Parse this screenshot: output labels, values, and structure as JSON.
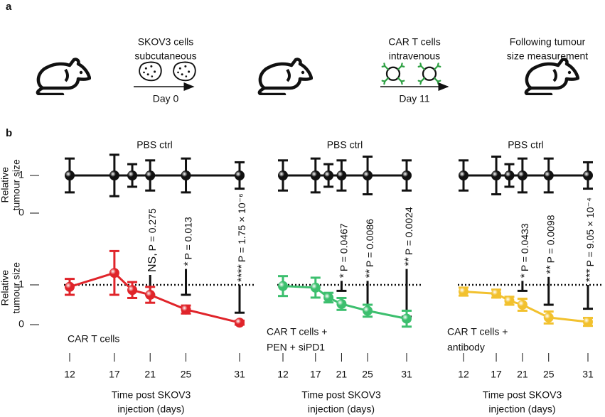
{
  "schematic": {
    "panel_label": "a",
    "steps": [
      {
        "lines": [
          "SKOV3 cells",
          "subcutaneous"
        ],
        "day": "Day 0"
      },
      {
        "lines": [
          "CAR T cells",
          "intravenous"
        ],
        "day": "Day 11"
      },
      {
        "lines": [
          "Following tumour",
          "size measurement"
        ]
      }
    ]
  },
  "panel_b_label": "b",
  "chart_data": [
    {
      "type": "line",
      "title": "PBS ctrl",
      "ylabel": [
        "Relative",
        "tumour size"
      ],
      "xlim": [
        12,
        31
      ],
      "ylim": [
        -0.1,
        1.6
      ],
      "yticks": [
        0,
        1
      ],
      "series": [
        {
          "color": "#111111",
          "x": [
            12,
            17,
            19,
            21,
            25,
            31
          ],
          "values": [
            1,
            1,
            1,
            1,
            1,
            1
          ],
          "errors": [
            0.45,
            0.55,
            0.3,
            0.4,
            0.45,
            0.35
          ]
        }
      ]
    },
    {
      "type": "line",
      "ylabel": [
        "Relative",
        "tumour size"
      ],
      "xlabel": [
        "Time post SKOV3",
        "injection (days)"
      ],
      "xlim": [
        12,
        31
      ],
      "ylim": [
        -0.15,
        2.0
      ],
      "xticks": [
        12,
        17,
        21,
        25,
        31
      ],
      "yticks": [
        0,
        1
      ],
      "reference_line": 1,
      "series_label": [
        "CAR T cells"
      ],
      "series": [
        {
          "color": "#e0242a",
          "x": [
            12,
            17,
            19,
            21,
            25,
            31
          ],
          "values": [
            0.95,
            1.3,
            0.87,
            0.75,
            0.38,
            0.05
          ],
          "errors": [
            0.2,
            0.55,
            0.2,
            0.2,
            0.1,
            0.05
          ]
        }
      ],
      "black_bars": [
        {
          "x": 21,
          "low": 0.75,
          "high": 1.25
        },
        {
          "x": 25,
          "low": 0.75,
          "high": 1.4
        },
        {
          "x": 31,
          "low": 0.3,
          "high": 1.0
        }
      ],
      "annotations": [
        {
          "x": 21,
          "stars": "NS,",
          "label": "P = 0.275"
        },
        {
          "x": 25,
          "stars": "*",
          "label": "P = 0.013"
        },
        {
          "x": 31,
          "stars": "****",
          "label": "P = 1.75 × 10⁻⁶"
        }
      ]
    },
    {
      "type": "line",
      "title": "PBS ctrl",
      "xlim": [
        12,
        31
      ],
      "ylim": [
        -0.1,
        1.6
      ],
      "series": [
        {
          "color": "#111111",
          "x": [
            12,
            17,
            19,
            21,
            25,
            31
          ],
          "values": [
            1,
            1,
            1,
            1,
            1,
            1
          ],
          "errors": [
            0.4,
            0.45,
            0.3,
            0.4,
            0.5,
            0.4
          ]
        }
      ]
    },
    {
      "type": "line",
      "xlabel": [
        "Time post SKOV3",
        "injection (days)"
      ],
      "xlim": [
        12,
        31
      ],
      "ylim": [
        -0.15,
        2.0
      ],
      "xticks": [
        12,
        17,
        21,
        25,
        31
      ],
      "reference_line": 1,
      "series_label": [
        "CAR T cells +",
        "PEN + siPD1"
      ],
      "series": [
        {
          "color": "#3cbf6e",
          "x": [
            12,
            17,
            19,
            21,
            25,
            31
          ],
          "values": [
            0.97,
            0.93,
            0.68,
            0.52,
            0.35,
            0.15
          ],
          "errors": [
            0.25,
            0.25,
            0.12,
            0.15,
            0.15,
            0.2
          ]
        }
      ],
      "black_bars": [
        {
          "x": 21,
          "low": 0.85,
          "high": 1.1
        },
        {
          "x": 25,
          "low": 0.5,
          "high": 1.1
        },
        {
          "x": 31,
          "low": 0.2,
          "high": 1.4
        }
      ],
      "annotations": [
        {
          "x": 21,
          "stars": "*",
          "label": "P = 0.0467"
        },
        {
          "x": 25,
          "stars": "**",
          "label": "P = 0.0086"
        },
        {
          "x": 31,
          "stars": "**",
          "label": "P = 0.0024"
        }
      ]
    },
    {
      "type": "line",
      "title": "PBS ctrl",
      "xlim": [
        12,
        31
      ],
      "ylim": [
        -0.1,
        1.6
      ],
      "series": [
        {
          "color": "#111111",
          "x": [
            12,
            17,
            19,
            21,
            25,
            31
          ],
          "values": [
            1,
            1,
            1,
            1,
            1,
            1
          ],
          "errors": [
            0.4,
            0.5,
            0.3,
            0.45,
            0.45,
            0.35
          ]
        }
      ]
    },
    {
      "type": "line",
      "xlabel": [
        "Time post SKOV3",
        "injection (days)"
      ],
      "xlim": [
        12,
        31
      ],
      "ylim": [
        -0.15,
        2.0
      ],
      "xticks": [
        12,
        17,
        21,
        25,
        31
      ],
      "reference_line": 1,
      "series_label": [
        "CAR T cells +",
        "antibody"
      ],
      "series": [
        {
          "color": "#f2c12e",
          "x": [
            12,
            17,
            19,
            21,
            25,
            31
          ],
          "values": [
            0.83,
            0.78,
            0.6,
            0.5,
            0.18,
            0.07
          ],
          "errors": [
            0.1,
            0.1,
            0.1,
            0.15,
            0.15,
            0.1
          ]
        }
      ],
      "black_bars": [
        {
          "x": 21,
          "low": 0.85,
          "high": 1.1
        },
        {
          "x": 25,
          "low": 0.5,
          "high": 1.2
        },
        {
          "x": 31,
          "low": 0.4,
          "high": 1.0
        }
      ],
      "annotations": [
        {
          "x": 21,
          "stars": "*",
          "label": "P = 0.0433"
        },
        {
          "x": 25,
          "stars": "**",
          "label": "P = 0.0098"
        },
        {
          "x": 31,
          "stars": "***",
          "label": "P = 9.05 × 10⁻⁴"
        }
      ]
    }
  ]
}
